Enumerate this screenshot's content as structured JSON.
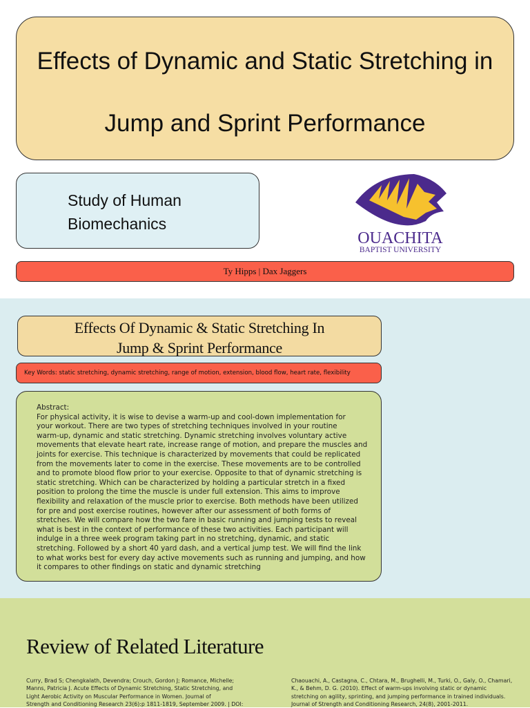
{
  "header": {
    "title_lines": [
      "Effects of Dynamic and Static Stretching in",
      "Jump and Sprint Performance"
    ],
    "subtitle_lines": [
      "Study of Human",
      "Biomechanics"
    ],
    "authors": "Ty Hipps | Dax Jaggers",
    "logo": {
      "name": "OUACHITA",
      "subname": "BAPTIST UNIVERSITY",
      "colors": {
        "purple": "#4b2a8c",
        "gold": "#f6c12e"
      }
    }
  },
  "abstract_section": {
    "heading_lines": [
      "Effects Of Dynamic & Static Stretching In",
      "Jump & Sprint Performance"
    ],
    "keywords": "Key Words: static stretching, dynamic stretching, range of motion, extension, blood flow, heart rate, flexibility",
    "abstract_label": "Abstract:",
    "abstract_lines": [
      "For physical activity, it is wise to devise a warm-up and cool-down implementation for",
      "your workout. There are two types of stretching techniques involved in your routine",
      "warm-up, dynamic and static stretching. Dynamic stretching involves voluntary active",
      "movements that elevate heart rate, increase range of motion, and prepare the muscles and",
      "joints for exercise. This technique is characterized by movements that could be replicated",
      "from the movements later to come in the exercise. These movements are to be controlled",
      "and to promote blood flow prior to your exercise. Opposite to that of dynamic stretching is",
      "static stretching. Which can be characterized by holding a particular stretch in a fixed",
      "position to prolong the time the muscle is under full extension. This aims to improve",
      "flexibility and relaxation of the muscle prior to exercise. Both methods have been utilized",
      "for pre and post exercise routines, however after our assessment of both forms of",
      "stretches. We will compare how the two fare in basic running and jumping tests to reveal",
      "what is best in the context of performance of these two activities. Each participant will",
      "indulge in a three week program taking part in no stretching, dynamic, and static",
      "stretching. Followed by a short 40 yard dash, and a vertical jump test. We will find the link",
      "to what works best for every day active movements such as running and jumping, and how",
      "it compares to other findings on static and dynamic stretching"
    ]
  },
  "literature": {
    "title": "Review of Related Literature",
    "refs": [
      [
        "Curry, Brad S; Chengkalath, Devendra; Crouch, Gordon J; Romance, Michelle;",
        "Manns, Patricia J. Acute Effects of Dynamic Stretching, Static Stretching, and",
        "Light Aerobic Activity on Muscular Performance in Women. Journal of",
        "Strength and Conditioning Research 23(6):p 1811-1819, September 2009. | DOI:"
      ],
      [
        "Chaouachi, A., Castagna, C., Chtara, M., Brughelli, M., Turki, O., Galy, O., Chamari,",
        "K., & Behm, D. G. (2010). Effect of warm-ups involving static or dynamic",
        "stretching on agility, sprinting, and jumping performance in trained individuals.",
        "Journal of Strength and Conditioning Research, 24(8), 2001-2011."
      ]
    ]
  }
}
